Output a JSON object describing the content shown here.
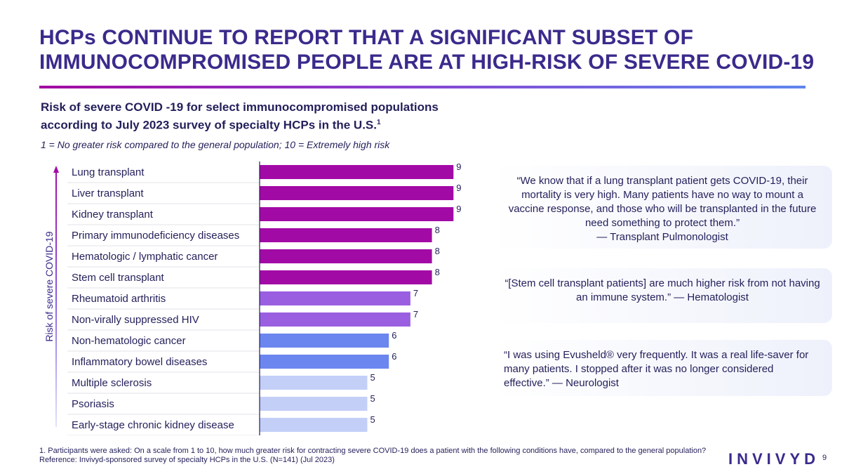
{
  "slide": {
    "title": "HCPs CONTINUE TO REPORT THAT A SIGNIFICANT SUBSET OF IMMUNOCOMPROMISED PEOPLE ARE AT HIGH-RISK OF SEVERE COVID-19",
    "subtitle_line1": "Risk of severe COVID -19 for select immunocompromised populations",
    "subtitle_line2": "according to July 2023 survey of specialty HCPs in the U.S.",
    "subtitle_sup": "1",
    "scale_note": "1 = No greater risk compared to the general population; 10 = Extremely high risk",
    "y_axis_label": "Risk of severe COVID-19",
    "footnote": "1. Participants were asked: On a scale from 1 to 10, how much greater risk for contracting severe COVID-19 does a patient with the following conditions have, compared to the general population? Reference: Invivyd-sponsored survey of specialty HCPs in the U.S. (N=141) (Jul 2023)",
    "logo_text": "INVIVYD",
    "page_number": "9"
  },
  "quotes": [
    {
      "text": "“We know that if a lung transplant patient gets COVID-19, their mortality is very high. Many patients have no way to mount a vaccine response, and those who will be transplanted in the future need something to protect them.”",
      "attribution": "— Transplant Pulmonologist"
    },
    {
      "text": "“[Stem cell transplant patients] are much higher risk from not having an immune system.” — Hematologist"
    },
    {
      "text": "“I was using Evusheld® very frequently. It was a real life-saver for many patients. I stopped after it was no longer considered effective.” — Neurologist"
    }
  ],
  "colors": {
    "title": "#3b2a8c",
    "bar_9_8": "#a20aa6",
    "bar_7": "#9a5fe0",
    "bar_6": "#6b86ee",
    "bar_5": "#c4cff8"
  },
  "chart_data": {
    "type": "bar",
    "orientation": "horizontal",
    "title": "Risk of severe COVID -19 for select immunocompromised populations according to July 2023 survey of specialty HCPs in the U.S.",
    "xlabel": "",
    "ylabel": "Risk of severe COVID-19",
    "xlim": [
      0,
      10
    ],
    "categories": [
      "Lung transplant",
      "Liver transplant",
      "Kidney transplant",
      "Primary immunodeficiency diseases",
      "Hematologic / lymphatic cancer",
      "Stem cell transplant",
      "Rheumatoid arthritis",
      "Non-virally suppressed HIV",
      "Non-hematologic cancer",
      "Inflammatory bowel diseases",
      "Multiple sclerosis",
      "Psoriasis",
      "Early-stage chronic kidney disease"
    ],
    "values": [
      9,
      9,
      9,
      8,
      8,
      8,
      7,
      7,
      6,
      6,
      5,
      5,
      5
    ],
    "grid": false,
    "legend": "none"
  }
}
